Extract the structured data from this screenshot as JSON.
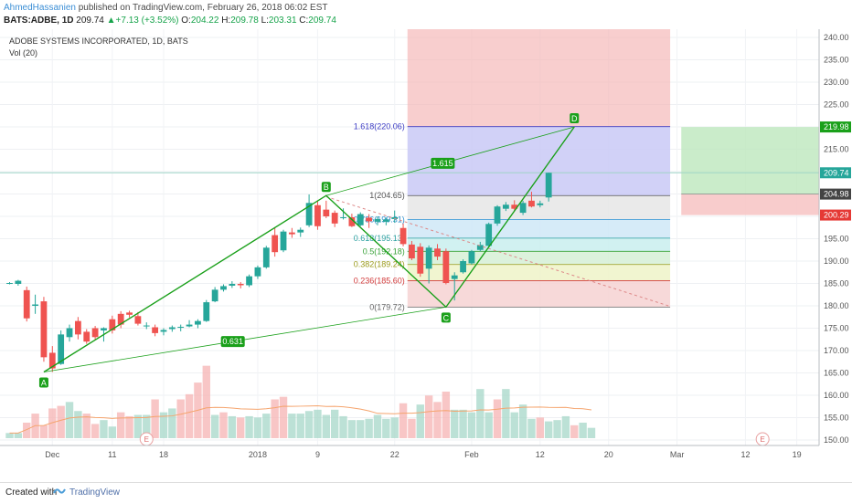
{
  "header": {
    "author": "AhmedHassanien",
    "published_text": "published on TradingView.com, February 26, 2018 06:02 EST",
    "symbol": "BATS:ADBE, 1D",
    "last": "209.74",
    "change_arrow": "▲",
    "change": "+7.13 (+3.52%)",
    "open_label": "O:",
    "open": "204.22",
    "high_label": "H:",
    "high": "209.78",
    "low_label": "L:",
    "low": "203.31",
    "close_label": "C:",
    "close": "209.74"
  },
  "legend": {
    "title": "ADOBE SYSTEMS INCORPORATED, 1D, BATS",
    "vol": "Vol (20)"
  },
  "footer": {
    "created_with": "Created with",
    "brand": "TradingView"
  },
  "colors": {
    "up": "#26a69a",
    "down": "#ef5350",
    "pattern": "#1aa01a",
    "fib_red": "#f4b4b4",
    "fib_blue": "#c9c9f6",
    "target_green": "#bde7bd"
  },
  "chart_data": {
    "type": "candlestick",
    "title": "ADOBE SYSTEMS INCORPORATED, 1D, BATS",
    "y_axis": {
      "ticks": [
        "150.00",
        "155.00",
        "160.00",
        "165.00",
        "170.00",
        "175.00",
        "180.00",
        "185.00",
        "190.00",
        "195.00",
        "200.00",
        "205.00",
        "210.00",
        "215.00",
        "220.00",
        "225.00",
        "230.00",
        "235.00",
        "240.00"
      ],
      "ylim": [
        147,
        241
      ],
      "price_labels": [
        {
          "value": 219.98,
          "text": "219.98",
          "color": "#1aa01a"
        },
        {
          "value": 209.74,
          "text": "209.74",
          "color": "#26a69a"
        },
        {
          "value": 204.98,
          "text": "204.98",
          "color": "#444444"
        },
        {
          "value": 200.29,
          "text": "200.29",
          "color": "#e53935"
        }
      ]
    },
    "x_axis": {
      "ticks": [
        "Dec",
        "11",
        "18",
        "2018",
        "9",
        "22",
        "Feb",
        "12",
        "20",
        "Mar",
        "12",
        "19"
      ]
    },
    "candles": [
      {
        "o": 185.0,
        "h": 185.3,
        "l": 184.8,
        "c": 185.1
      },
      {
        "o": 184.9,
        "h": 185.8,
        "l": 184.5,
        "c": 185.6
      },
      {
        "o": 183.5,
        "h": 184.3,
        "l": 176.5,
        "c": 177.2
      },
      {
        "o": 180.0,
        "h": 182.5,
        "l": 178.2,
        "c": 180.3
      },
      {
        "o": 181.0,
        "h": 182.0,
        "l": 167.5,
        "c": 168.5
      },
      {
        "o": 169.5,
        "h": 171.0,
        "l": 165.2,
        "c": 166.0
      },
      {
        "o": 167.0,
        "h": 174.5,
        "l": 166.8,
        "c": 173.6
      },
      {
        "o": 173.0,
        "h": 175.8,
        "l": 172.0,
        "c": 175.0
      },
      {
        "o": 176.6,
        "h": 177.5,
        "l": 172.5,
        "c": 173.6
      },
      {
        "o": 174.2,
        "h": 174.8,
        "l": 171.5,
        "c": 172.0
      },
      {
        "o": 175.0,
        "h": 175.5,
        "l": 172.5,
        "c": 173.0
      },
      {
        "o": 174.5,
        "h": 175.2,
        "l": 172.0,
        "c": 175.0
      },
      {
        "o": 177.0,
        "h": 177.8,
        "l": 173.8,
        "c": 174.5
      },
      {
        "o": 178.2,
        "h": 178.8,
        "l": 175.0,
        "c": 175.8
      },
      {
        "o": 178.5,
        "h": 178.9,
        "l": 177.4,
        "c": 178.0
      },
      {
        "o": 177.7,
        "h": 178.6,
        "l": 175.6,
        "c": 176.0
      },
      {
        "o": 175.6,
        "h": 176.3,
        "l": 174.8,
        "c": 175.6
      },
      {
        "o": 175.2,
        "h": 175.8,
        "l": 173.2,
        "c": 173.9
      },
      {
        "o": 174.2,
        "h": 175.0,
        "l": 173.4,
        "c": 174.6
      },
      {
        "o": 174.8,
        "h": 175.6,
        "l": 174.2,
        "c": 175.2
      },
      {
        "o": 175.2,
        "h": 175.8,
        "l": 174.3,
        "c": 175.3
      },
      {
        "o": 175.4,
        "h": 176.8,
        "l": 175.2,
        "c": 175.8
      },
      {
        "o": 175.8,
        "h": 177.0,
        "l": 175.0,
        "c": 176.6
      },
      {
        "o": 176.6,
        "h": 181.3,
        "l": 176.4,
        "c": 180.8
      },
      {
        "o": 181.0,
        "h": 184.2,
        "l": 180.8,
        "c": 183.6
      },
      {
        "o": 183.6,
        "h": 184.8,
        "l": 183.2,
        "c": 184.4
      },
      {
        "o": 184.5,
        "h": 185.5,
        "l": 184.0,
        "c": 184.9
      },
      {
        "o": 184.9,
        "h": 185.3,
        "l": 183.9,
        "c": 184.6
      },
      {
        "o": 184.6,
        "h": 187.0,
        "l": 184.2,
        "c": 186.6
      },
      {
        "o": 186.6,
        "h": 189.0,
        "l": 186.0,
        "c": 188.6
      },
      {
        "o": 188.6,
        "h": 193.4,
        "l": 188.3,
        "c": 193.0
      },
      {
        "o": 195.8,
        "h": 197.4,
        "l": 191.0,
        "c": 192.0
      },
      {
        "o": 192.4,
        "h": 197.0,
        "l": 192.0,
        "c": 196.6
      },
      {
        "o": 196.4,
        "h": 197.4,
        "l": 195.2,
        "c": 196.0
      },
      {
        "o": 196.4,
        "h": 197.5,
        "l": 195.4,
        "c": 197.0
      },
      {
        "o": 198.0,
        "h": 204.9,
        "l": 197.6,
        "c": 203.0
      },
      {
        "o": 202.5,
        "h": 203.4,
        "l": 197.0,
        "c": 197.8
      },
      {
        "o": 201.5,
        "h": 203.5,
        "l": 199.6,
        "c": 200.0
      },
      {
        "o": 200.8,
        "h": 201.3,
        "l": 197.6,
        "c": 198.4
      },
      {
        "o": 199.6,
        "h": 201.8,
        "l": 199.3,
        "c": 199.8
      },
      {
        "o": 199.8,
        "h": 200.6,
        "l": 197.6,
        "c": 197.8
      },
      {
        "o": 198.0,
        "h": 200.9,
        "l": 197.8,
        "c": 200.5
      },
      {
        "o": 199.7,
        "h": 200.5,
        "l": 197.4,
        "c": 198.9
      },
      {
        "o": 198.8,
        "h": 200.0,
        "l": 198.0,
        "c": 199.4
      },
      {
        "o": 198.8,
        "h": 199.7,
        "l": 198.0,
        "c": 199.3
      },
      {
        "o": 199.4,
        "h": 201.3,
        "l": 198.6,
        "c": 199.8
      },
      {
        "o": 197.4,
        "h": 198.4,
        "l": 193.3,
        "c": 193.8
      },
      {
        "o": 193.7,
        "h": 194.5,
        "l": 190.2,
        "c": 190.6
      },
      {
        "o": 193.2,
        "h": 194.0,
        "l": 186.5,
        "c": 187.2
      },
      {
        "o": 188.3,
        "h": 193.5,
        "l": 185.0,
        "c": 193.0
      },
      {
        "o": 192.8,
        "h": 193.8,
        "l": 190.2,
        "c": 191.0
      },
      {
        "o": 192.2,
        "h": 192.8,
        "l": 184.8,
        "c": 185.1
      },
      {
        "o": 186.0,
        "h": 187.5,
        "l": 181.2,
        "c": 186.8
      },
      {
        "o": 187.5,
        "h": 190.4,
        "l": 187.2,
        "c": 190.0
      },
      {
        "o": 189.5,
        "h": 192.5,
        "l": 189.2,
        "c": 192.2
      },
      {
        "o": 192.5,
        "h": 194.3,
        "l": 192.2,
        "c": 193.6
      },
      {
        "o": 193.4,
        "h": 198.6,
        "l": 193.1,
        "c": 198.3
      },
      {
        "o": 198.4,
        "h": 202.5,
        "l": 197.9,
        "c": 202.2
      },
      {
        "o": 201.7,
        "h": 203.2,
        "l": 201.2,
        "c": 202.6
      },
      {
        "o": 202.6,
        "h": 203.6,
        "l": 201.1,
        "c": 201.7
      },
      {
        "o": 200.8,
        "h": 203.5,
        "l": 200.3,
        "c": 203.0
      },
      {
        "o": 203.5,
        "h": 205.5,
        "l": 202.0,
        "c": 202.2
      },
      {
        "o": 202.5,
        "h": 203.5,
        "l": 202.0,
        "c": 202.9
      },
      {
        "o": 204.22,
        "h": 209.78,
        "l": 203.31,
        "c": 209.74
      }
    ],
    "volume": [
      {
        "v": 4,
        "up": true
      },
      {
        "v": 4,
        "up": true
      },
      {
        "v": 12,
        "up": false
      },
      {
        "v": 19,
        "up": false
      },
      {
        "v": 10,
        "up": false
      },
      {
        "v": 23,
        "up": false
      },
      {
        "v": 25,
        "up": false
      },
      {
        "v": 28,
        "up": true
      },
      {
        "v": 21,
        "up": true
      },
      {
        "v": 19,
        "up": false
      },
      {
        "v": 11,
        "up": false
      },
      {
        "v": 14,
        "up": true
      },
      {
        "v": 9,
        "up": true
      },
      {
        "v": 20,
        "up": false
      },
      {
        "v": 17,
        "up": false
      },
      {
        "v": 18,
        "up": true
      },
      {
        "v": 18,
        "up": true
      },
      {
        "v": 30,
        "up": false
      },
      {
        "v": 20,
        "up": true
      },
      {
        "v": 23,
        "up": true
      },
      {
        "v": 30,
        "up": false
      },
      {
        "v": 34,
        "up": false
      },
      {
        "v": 43,
        "up": false
      },
      {
        "v": 56,
        "up": false
      },
      {
        "v": 18,
        "up": true
      },
      {
        "v": 20,
        "up": false
      },
      {
        "v": 17,
        "up": true
      },
      {
        "v": 16,
        "up": false
      },
      {
        "v": 17,
        "up": true
      },
      {
        "v": 16,
        "up": true
      },
      {
        "v": 19,
        "up": true
      },
      {
        "v": 30,
        "up": false
      },
      {
        "v": 32,
        "up": false
      },
      {
        "v": 19,
        "up": true
      },
      {
        "v": 19,
        "up": true
      },
      {
        "v": 21,
        "up": true
      },
      {
        "v": 22,
        "up": true
      },
      {
        "v": 18,
        "up": true
      },
      {
        "v": 22,
        "up": true
      },
      {
        "v": 17,
        "up": true
      },
      {
        "v": 14,
        "up": true
      },
      {
        "v": 14,
        "up": true
      },
      {
        "v": 15,
        "up": true
      },
      {
        "v": 18,
        "up": true
      },
      {
        "v": 15,
        "up": true
      },
      {
        "v": 16,
        "up": true
      },
      {
        "v": 27,
        "up": false
      },
      {
        "v": 15,
        "up": false
      },
      {
        "v": 26,
        "up": true
      },
      {
        "v": 33,
        "up": false
      },
      {
        "v": 28,
        "up": false
      },
      {
        "v": 36,
        "up": false
      },
      {
        "v": 22,
        "up": true
      },
      {
        "v": 22,
        "up": true
      },
      {
        "v": 20,
        "up": true
      },
      {
        "v": 38,
        "up": true
      },
      {
        "v": 20,
        "up": true
      },
      {
        "v": 30,
        "up": false
      },
      {
        "v": 38,
        "up": true
      },
      {
        "v": 20,
        "up": true
      },
      {
        "v": 26,
        "up": true
      },
      {
        "v": 15,
        "up": true
      },
      {
        "v": 16,
        "up": false
      },
      {
        "v": 13,
        "up": true
      },
      {
        "v": 14,
        "up": true
      },
      {
        "v": 17,
        "up": true
      },
      {
        "v": 10,
        "up": false
      },
      {
        "v": 12,
        "up": true
      },
      {
        "v": 8,
        "up": true
      }
    ],
    "pattern": {
      "points": [
        {
          "label": "A",
          "bar": 4,
          "price": 165.2
        },
        {
          "label": "B",
          "bar": 37,
          "price": 204.65
        },
        {
          "label": "C",
          "bar": 51,
          "price": 179.72
        },
        {
          "label": "D",
          "bar": 66,
          "price": 220.0
        }
      ],
      "ratios": [
        {
          "text": "0.631",
          "from": "A",
          "to": "C"
        },
        {
          "text": "1.615",
          "from": "B",
          "to": "D"
        }
      ]
    },
    "fib_levels": [
      {
        "ratio": "1.618",
        "value": 220.06,
        "text": "1.618(220.06)",
        "color": "#3b3bc4"
      },
      {
        "ratio": "1",
        "value": 204.65,
        "text": "1(204.65)",
        "color": "#555555"
      },
      {
        "ratio": "0.786",
        "value": 199.31,
        "text": "0.786(199.31)",
        "color": "#2b8fd0"
      },
      {
        "ratio": "0.618",
        "value": 195.13,
        "text": "0.618(195.13)",
        "color": "#2ba0a0"
      },
      {
        "ratio": "0.5",
        "value": 192.18,
        "text": "0.5(192.18)",
        "color": "#3aa33a"
      },
      {
        "ratio": "0.382",
        "value": 189.24,
        "text": "0.382(189.24)",
        "color": "#9a9a1a"
      },
      {
        "ratio": "0.236",
        "value": 185.6,
        "text": "0.236(185.60)",
        "color": "#d23a3a"
      },
      {
        "ratio": "0",
        "value": 179.72,
        "text": "0(179.72)",
        "color": "#666666"
      }
    ],
    "event_markers": [
      "E",
      "E"
    ]
  }
}
